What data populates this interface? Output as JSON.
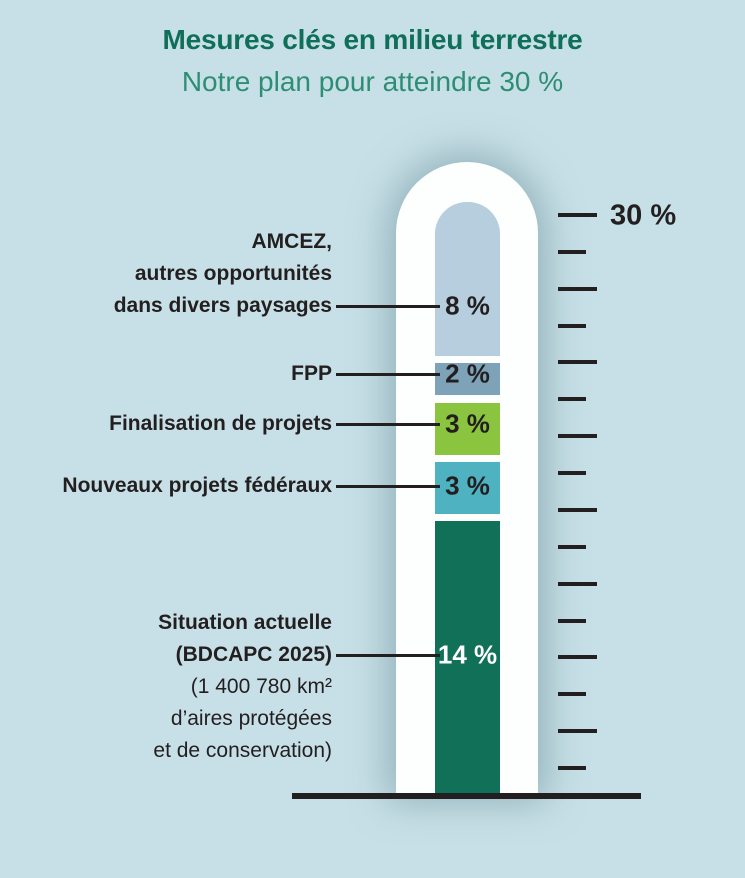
{
  "colors": {
    "background": "#c7e0e7",
    "title": "#0f6f58",
    "subtitle": "#2e8e74",
    "ink": "#231f20",
    "tube": "#fdfefe"
  },
  "chart_data": {
    "type": "bar",
    "variant": "thermometer-stacked",
    "title": "Mesures clés en milieu terrestre",
    "subtitle": "Notre plan pour atteindre 30 %",
    "ylim": [
      0,
      30
    ],
    "unit": "%",
    "scale": {
      "max_label": "30 %",
      "tick_count": 16
    },
    "segments": [
      {
        "label_lines": [
          "AMCEZ,",
          "autres opportunités",
          "dans divers paysages"
        ],
        "value": 8,
        "value_label": "8 %",
        "color": "#b6cedd",
        "text_color": "#231f20"
      },
      {
        "label_lines": [
          "FPP"
        ],
        "value": 2,
        "value_label": "2 %",
        "color": "#7ea3b8",
        "text_color": "#231f20"
      },
      {
        "label_lines": [
          "Finalisation de projets"
        ],
        "value": 3,
        "value_label": "3 %",
        "color": "#8bc540",
        "text_color": "#231f20"
      },
      {
        "label_lines": [
          "Nouveaux projets fédéraux"
        ],
        "value": 3,
        "value_label": "3 %",
        "color": "#4eb2c0",
        "text_color": "#231f20"
      },
      {
        "label_lines": [
          "Situation actuelle",
          "(BDCAPC 2025)",
          "(1 400 780 km²",
          "d’aires protégées",
          "et de conservation)"
        ],
        "value": 14,
        "value_label": "14 %",
        "color": "#117058",
        "text_color": "#ffffff"
      }
    ]
  }
}
